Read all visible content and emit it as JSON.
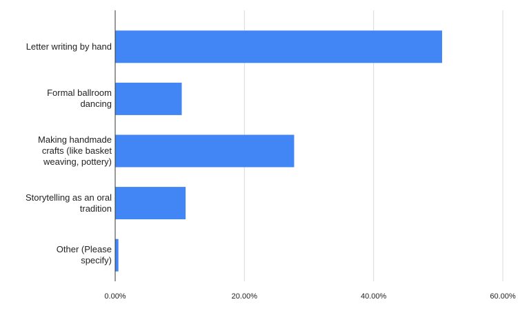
{
  "chart_data": {
    "type": "hbar",
    "categories": [
      "Letter writing by hand",
      "Formal ballroom\ndancing",
      "Making handmade\ncrafts (like basket\nweaving, pottery)",
      "Storytelling as an oral\ntradition",
      "Other (Please\nspecify)"
    ],
    "values": [
      50.6,
      10.3,
      27.7,
      10.9,
      0.5
    ],
    "color": "#4285f4",
    "xlim": [
      0,
      60
    ],
    "xticks": [
      {
        "value": 0,
        "label": "0.00%"
      },
      {
        "value": 20,
        "label": "20.00%"
      },
      {
        "value": 40,
        "label": "40.00%"
      },
      {
        "value": 60,
        "label": "60.00%"
      }
    ],
    "grid": true
  }
}
